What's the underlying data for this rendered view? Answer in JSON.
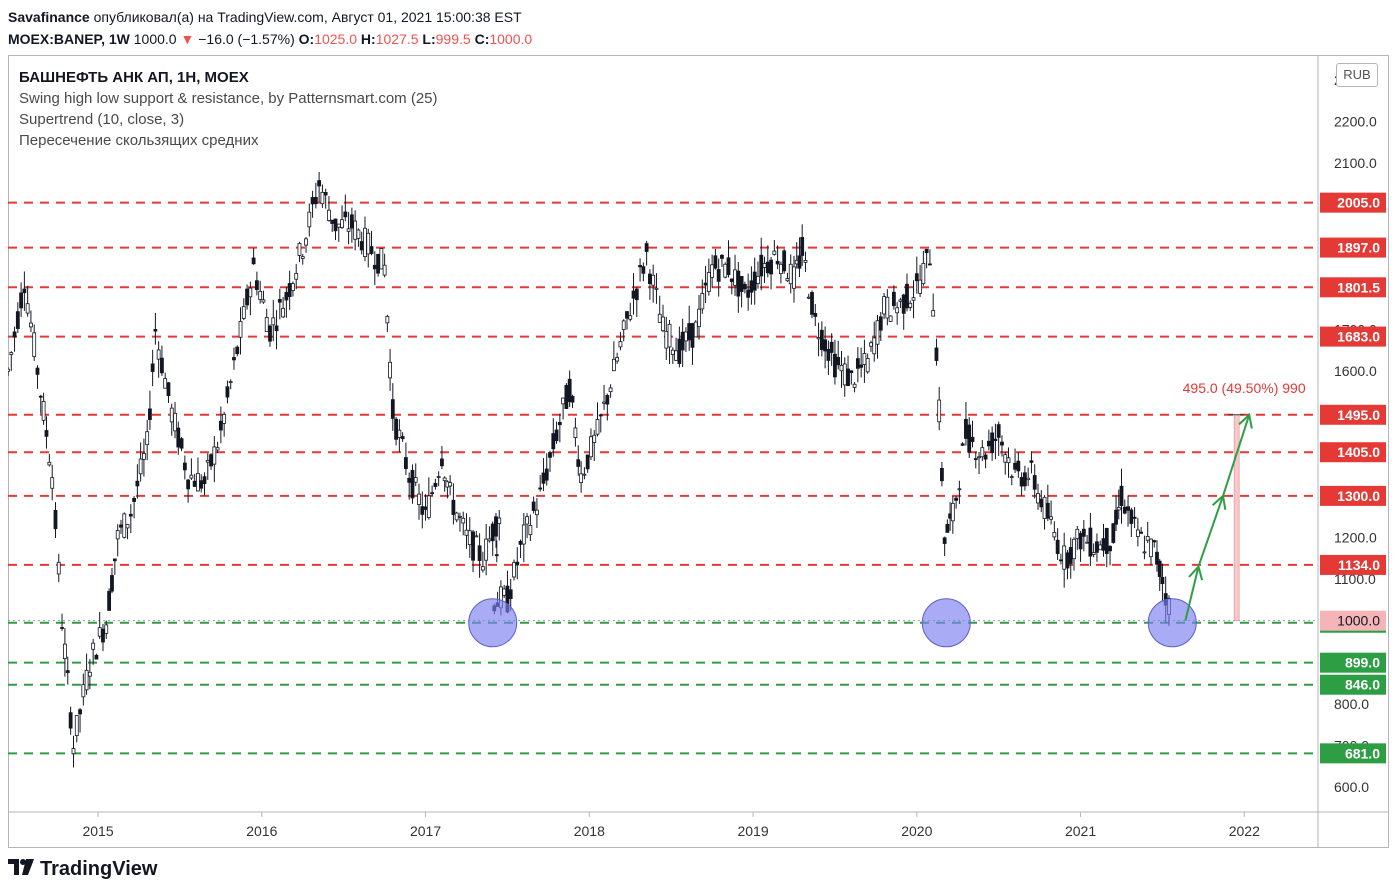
{
  "header": {
    "publisher": "Savafinance",
    "published_text": "опубликовал(а) на TradingView.com, Август 01, 2021 15:00:38 EST",
    "symbol": "MOEX:BANEP, 1W",
    "last": "1000.0",
    "change_arrow": "▼",
    "change": "−16.0 (−1.57%)",
    "o_label": "O:",
    "o_value": "1025.0",
    "h_label": "H:",
    "h_value": "1027.5",
    "l_label": "L:",
    "l_value": "999.5",
    "c_label": "C:",
    "c_value": "1000.0"
  },
  "legend": {
    "symbol_line": "БАШНЕФТЬ АНК АП, 1Н, MOEX",
    "indicator_1": "Swing high low support & resistance, by Patternsmart.com (25)",
    "indicator_2": "Supertrend (10, close, 3)",
    "indicator_3": "Пересечение скользящих средних"
  },
  "currency_button": "RUB",
  "footer": {
    "brand": "TradingView",
    "logo_icon": "tradingview-logo-icon"
  },
  "colors": {
    "resistance": "#e53935",
    "support": "#2e9e45",
    "circle_fill": "#7b7ff0",
    "arrow": "#2e9e45",
    "measure_fill": "#f7c9cc",
    "measure_text": "#e53935",
    "candles": "#131722",
    "current_price_bg": "#f5b5b8"
  },
  "chart_data": {
    "type": "candlestick",
    "title": "БАШНЕФТЬ АНК АП, 1Н, MOEX",
    "ylim": [
      540,
      2360
    ],
    "y_ticks": [
      "600.0",
      "700.0",
      "800.0",
      "900.0",
      "1000.0",
      "1100.0",
      "1200.0",
      "1300.0",
      "1400.0",
      "1500.0",
      "1600.0",
      "1700.0",
      "1800.0",
      "1900.0",
      "2000.0",
      "2100.0",
      "2200.0",
      "2300.0"
    ],
    "y_tick_values": [
      600,
      700,
      800,
      900,
      1000,
      1100,
      1200,
      1300,
      1400,
      1500,
      1600,
      1700,
      1800,
      1900,
      2000,
      2100,
      2200,
      2300
    ],
    "x_ticks": [
      "2015",
      "2016",
      "2017",
      "2018",
      "2019",
      "2020",
      "2021",
      "2022"
    ],
    "x_tick_values": [
      2015,
      2016,
      2017,
      2018,
      2019,
      2020,
      2021,
      2022
    ],
    "xlim": [
      2014.45,
      2022.45
    ],
    "resistance_levels": [
      {
        "label": "2005.0",
        "value": 2005.0
      },
      {
        "label": "1897.0",
        "value": 1897.0
      },
      {
        "label": "1801.5",
        "value": 1801.5
      },
      {
        "label": "1683.0",
        "value": 1683.0
      },
      {
        "label": "1495.0",
        "value": 1495.0
      },
      {
        "label": "1405.0",
        "value": 1405.0
      },
      {
        "label": "1300.0",
        "value": 1300.0
      },
      {
        "label": "1134.0",
        "value": 1134.0
      }
    ],
    "support_levels": [
      {
        "label": "995.0",
        "value": 995.0
      },
      {
        "label": "899.0",
        "value": 899.0
      },
      {
        "label": "846.0",
        "value": 846.0
      },
      {
        "label": "681.0",
        "value": 681.0
      }
    ],
    "current_price": {
      "label": "1000.0",
      "value": 1000.0
    },
    "price_path": [
      [
        2014.45,
        1600
      ],
      [
        2014.55,
        1820
      ],
      [
        2014.65,
        1550
      ],
      [
        2014.72,
        1350
      ],
      [
        2014.78,
        1000
      ],
      [
        2014.85,
        700
      ],
      [
        2014.95,
        900
      ],
      [
        2015.05,
        1000
      ],
      [
        2015.12,
        1200
      ],
      [
        2015.2,
        1260
      ],
      [
        2015.3,
        1420
      ],
      [
        2015.35,
        1700
      ],
      [
        2015.45,
        1500
      ],
      [
        2015.55,
        1350
      ],
      [
        2015.65,
        1330
      ],
      [
        2015.75,
        1450
      ],
      [
        2015.85,
        1650
      ],
      [
        2015.95,
        1850
      ],
      [
        2016.05,
        1700
      ],
      [
        2016.15,
        1780
      ],
      [
        2016.25,
        1900
      ],
      [
        2016.35,
        2050
      ],
      [
        2016.45,
        1950
      ],
      [
        2016.55,
        1950
      ],
      [
        2016.65,
        1900
      ],
      [
        2016.75,
        1850
      ],
      [
        2016.8,
        1500
      ],
      [
        2016.9,
        1350
      ],
      [
        2017.0,
        1250
      ],
      [
        2017.1,
        1400
      ],
      [
        2017.15,
        1300
      ],
      [
        2017.25,
        1200
      ],
      [
        2017.35,
        1150
      ],
      [
        2017.45,
        1260
      ],
      [
        2017.42,
        1050
      ],
      [
        2017.5,
        1050
      ],
      [
        2017.6,
        1200
      ],
      [
        2017.7,
        1300
      ],
      [
        2017.8,
        1450
      ],
      [
        2017.88,
        1560
      ],
      [
        2017.95,
        1350
      ],
      [
        2018.05,
        1450
      ],
      [
        2018.15,
        1600
      ],
      [
        2018.25,
        1750
      ],
      [
        2018.35,
        1880
      ],
      [
        2018.45,
        1700
      ],
      [
        2018.55,
        1650
      ],
      [
        2018.65,
        1700
      ],
      [
        2018.75,
        1850
      ],
      [
        2018.85,
        1850
      ],
      [
        2018.95,
        1780
      ],
      [
        2019.05,
        1850
      ],
      [
        2019.15,
        1880
      ],
      [
        2019.25,
        1820
      ],
      [
        2019.3,
        1890
      ],
      [
        2019.38,
        1720
      ],
      [
        2019.5,
        1620
      ],
      [
        2019.6,
        1580
      ],
      [
        2019.7,
        1620
      ],
      [
        2019.8,
        1750
      ],
      [
        2019.9,
        1760
      ],
      [
        2020.0,
        1800
      ],
      [
        2020.08,
        1880
      ],
      [
        2020.12,
        1650
      ],
      [
        2020.17,
        1200
      ],
      [
        2020.22,
        1250
      ],
      [
        2020.3,
        1450
      ],
      [
        2020.4,
        1400
      ],
      [
        2020.5,
        1450
      ],
      [
        2020.6,
        1350
      ],
      [
        2020.7,
        1350
      ],
      [
        2020.8,
        1250
      ],
      [
        2020.9,
        1150
      ],
      [
        2021.0,
        1200
      ],
      [
        2021.1,
        1180
      ],
      [
        2021.2,
        1200
      ],
      [
        2021.25,
        1300
      ],
      [
        2021.35,
        1200
      ],
      [
        2021.45,
        1170
      ],
      [
        2021.5,
        1100
      ],
      [
        2021.56,
        1000
      ]
    ],
    "circles": [
      {
        "x": 2017.41,
        "y": 995
      },
      {
        "x": 2020.18,
        "y": 995
      },
      {
        "x": 2021.56,
        "y": 995
      }
    ],
    "projection_arrows": [
      [
        [
          2021.64,
          1000
        ],
        [
          2021.72,
          1130
        ]
      ],
      [
        [
          2021.72,
          1130
        ],
        [
          2021.87,
          1300
        ]
      ],
      [
        [
          2021.87,
          1300
        ],
        [
          2022.03,
          1495
        ]
      ]
    ],
    "measure": {
      "x": 2021.95,
      "from": 1000,
      "to": 1495,
      "label": "495.0 (49.50%) 990"
    }
  }
}
